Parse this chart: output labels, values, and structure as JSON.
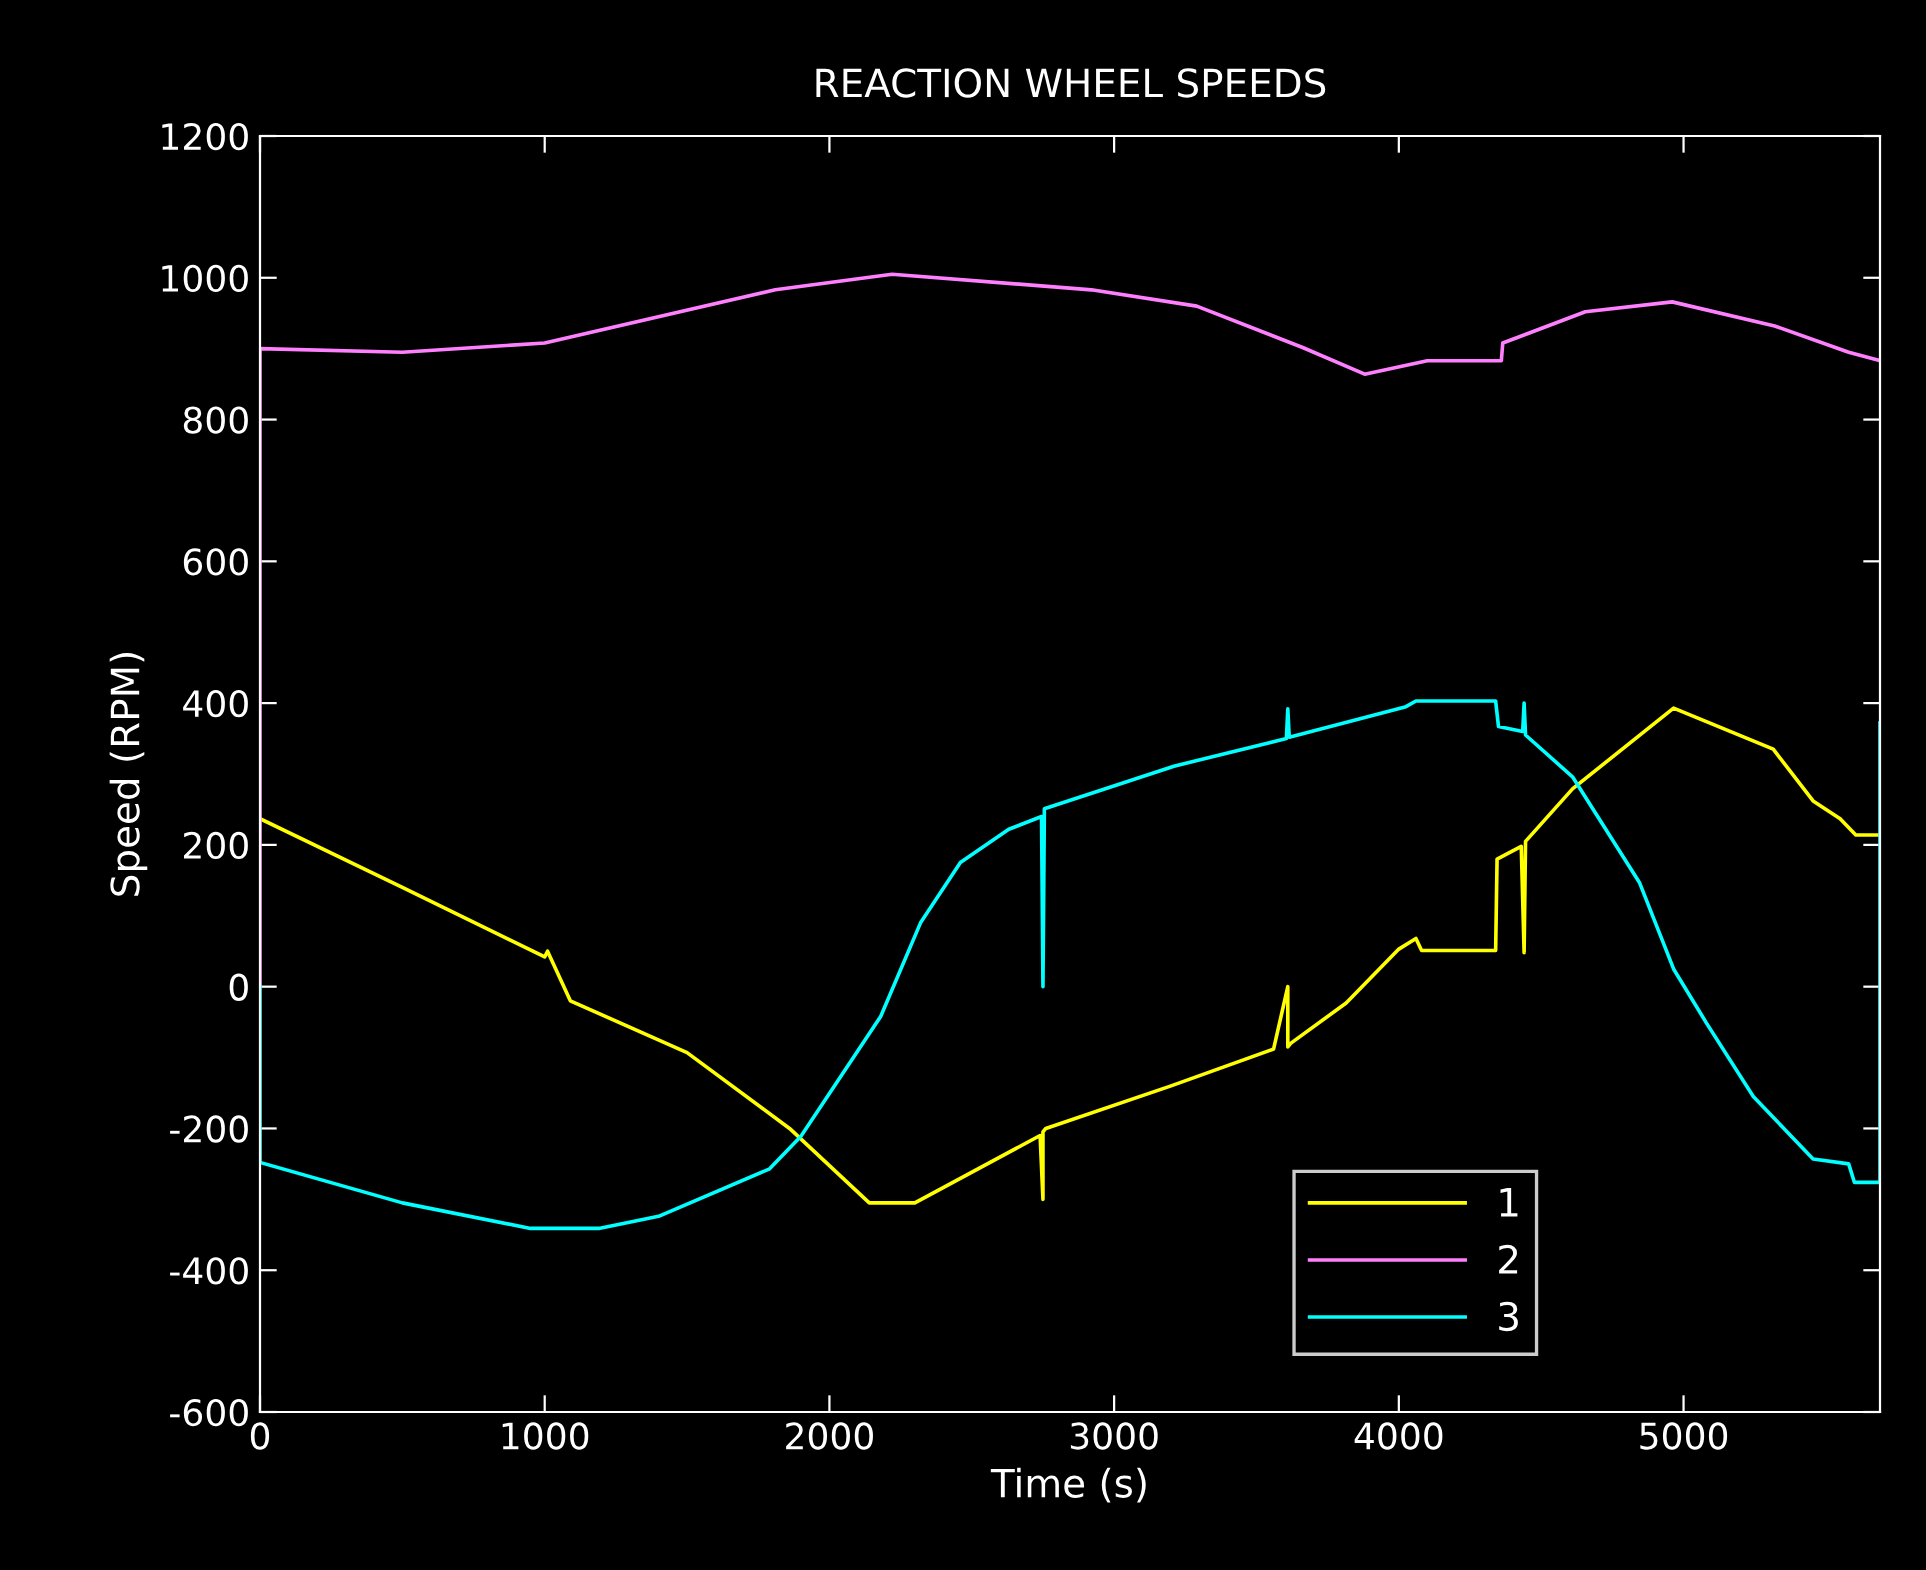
{
  "chart_data": {
    "type": "line",
    "title": "REACTION WHEEL SPEEDS",
    "xlabel": "Time (s)",
    "ylabel": "Speed (RPM)",
    "xlim": [
      0,
      5690
    ],
    "ylim": [
      -600,
      1200
    ],
    "xticks": [
      0,
      1000,
      2000,
      3000,
      4000,
      5000
    ],
    "yticks": [
      -600,
      -400,
      -200,
      0,
      200,
      400,
      600,
      800,
      1000,
      1200
    ],
    "grid": false,
    "legend": "bottom right",
    "line_style": "solid",
    "marker": "none",
    "series": [
      {
        "name": "1",
        "color": "#ffff00",
        "x": [
          0,
          500,
          1000,
          1010,
          1090,
          1500,
          1860,
          2140,
          2300,
          2740,
          2750,
          2750,
          2760,
          3200,
          3560,
          3610,
          3610,
          3620,
          3815,
          4000,
          4060,
          4080,
          4340,
          4345,
          4430,
          4440,
          4445,
          4610,
          4965,
          5315,
          5455,
          5550,
          5605,
          5690
        ],
        "values": [
          237,
          140,
          42,
          50,
          -20,
          -93,
          -200,
          -305,
          -305,
          -210,
          -300,
          -205,
          -200,
          -140,
          -88,
          0,
          -85,
          -80,
          -23,
          53,
          68,
          51,
          51,
          180,
          198,
          48,
          205,
          279,
          393,
          335,
          262,
          237,
          214,
          214
        ]
      },
      {
        "name": "2",
        "color": "#ff80ff",
        "x": [
          0,
          0,
          500,
          1000,
          1810,
          2220,
          2920,
          3290,
          3660,
          3880,
          4100,
          4360,
          4365,
          4655,
          4960,
          5320,
          5580,
          5690
        ],
        "values": [
          0,
          900,
          895,
          908,
          983,
          1005,
          983,
          960,
          902,
          864,
          883,
          883,
          908,
          952,
          966,
          932,
          895,
          883
        ]
      },
      {
        "name": "3",
        "color": "#00ffff",
        "x": [
          0,
          0,
          500,
          950,
          1190,
          1400,
          1790,
          1900,
          2180,
          2320,
          2460,
          2630,
          2745,
          2750,
          2755,
          3210,
          3605,
          3610,
          3615,
          4025,
          4060,
          4340,
          4350,
          4435,
          4440,
          4445,
          4610,
          4845,
          4965,
          5080,
          5245,
          5455,
          5580,
          5600,
          5690,
          5690
        ],
        "values": [
          0,
          -248,
          -305,
          -341,
          -341,
          -324,
          -257,
          -211,
          -42,
          90,
          175,
          222,
          240,
          0,
          251,
          311,
          350,
          392,
          352,
          395,
          403,
          403,
          367,
          360,
          400,
          355,
          296,
          147,
          25,
          -51,
          -155,
          -243,
          -250,
          -276,
          -276,
          372
        ]
      }
    ]
  }
}
